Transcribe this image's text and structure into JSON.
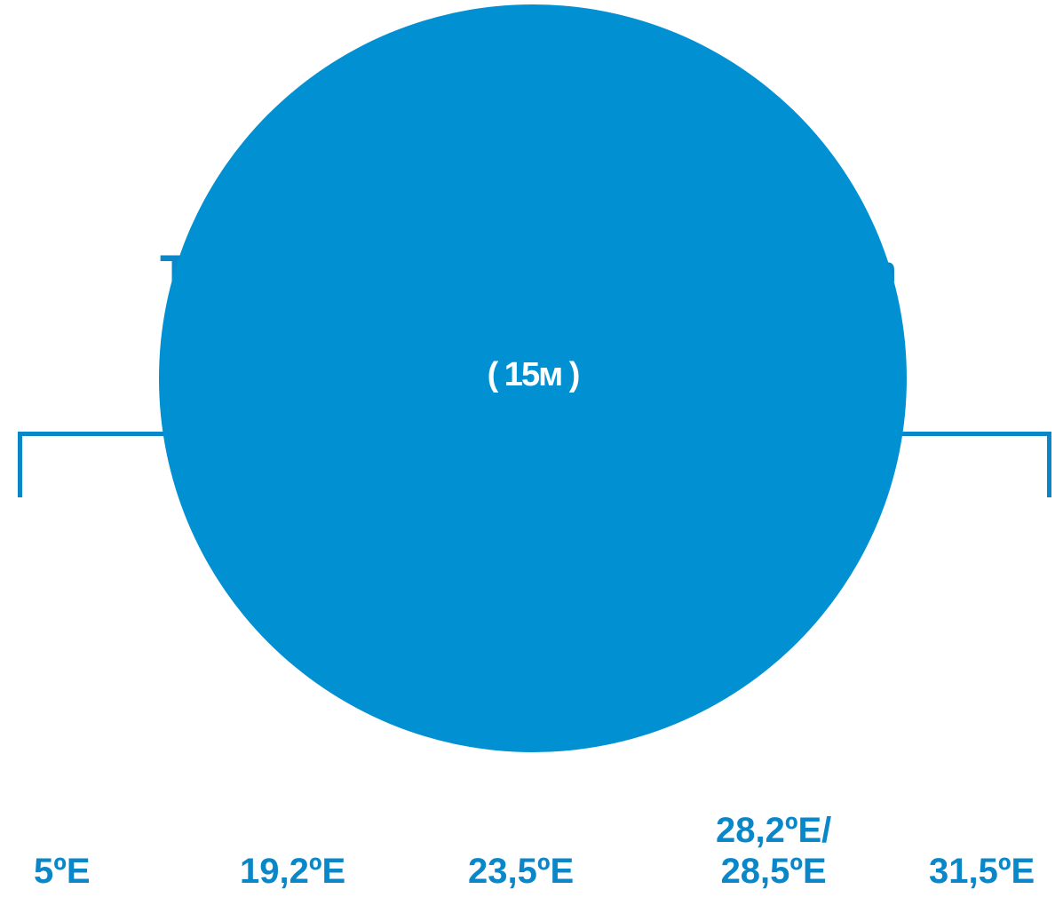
{
  "circle": {
    "fill_color": "#0191d3",
    "text": "( 15м )"
  },
  "ghost_glyphs": {
    "left": "T",
    "right": "n"
  },
  "colors": {
    "accent": "#0a87c8",
    "background": "#ffffff"
  },
  "positions": [
    {
      "lines": [
        "5ºE"
      ]
    },
    {
      "lines": [
        "19,2ºE"
      ]
    },
    {
      "lines": [
        "23,5ºE"
      ]
    },
    {
      "lines": [
        "28,2ºE/",
        "28,5ºE"
      ]
    },
    {
      "lines": [
        "31,5ºE"
      ]
    }
  ]
}
